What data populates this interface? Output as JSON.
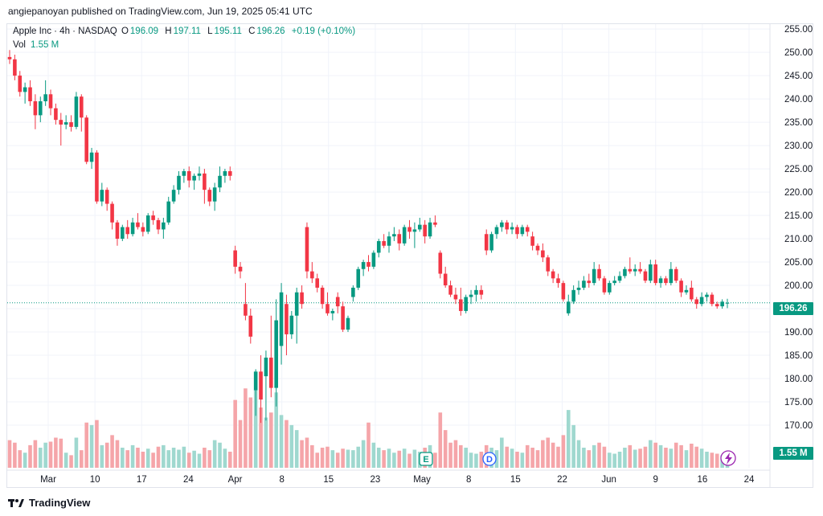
{
  "header": {
    "published": "angiepanoyan published on TradingView.com, Jun 19, 2025 05:41 UTC"
  },
  "legend": {
    "symbol": "Apple Inc · 4h · NASDAQ",
    "o_label": "O",
    "o": "196.09",
    "h_label": "H",
    "h": "197.11",
    "l_label": "L",
    "l": "195.11",
    "c_label": "C",
    "c": "196.26",
    "change": "+0.19 (+0.10%)",
    "vol_label": "Vol",
    "vol": "1.55 M"
  },
  "price_tag": "196.26",
  "volume_tag": "1.55 M",
  "footer": {
    "brand": "TradingView",
    "logo_icon": "tradingview-logo-icon"
  },
  "colors": {
    "up": "#089981",
    "down": "#f23645",
    "vol_up": "#9fd8cf",
    "vol_down": "#f5a5a9",
    "grid": "#f0f3fa"
  },
  "chart_data": {
    "type": "candlestick",
    "ylim": [
      165,
      257
    ],
    "y_ticks": [
      "170.00",
      "175.00",
      "180.00",
      "185.00",
      "190.00",
      "195.00",
      "200.00",
      "205.00",
      "210.00",
      "215.00",
      "220.00",
      "225.00",
      "230.00",
      "235.00",
      "240.00",
      "245.00",
      "250.00",
      "255.00"
    ],
    "x_ticks": [
      "Mar",
      "10",
      "17",
      "24",
      "Apr",
      "8",
      "15",
      "23",
      "May",
      "8",
      "15",
      "22",
      "Jun",
      "9",
      "16",
      "24"
    ],
    "last_price": 196.26,
    "event_markers": [
      {
        "label": "E",
        "icon": "earnings-marker"
      },
      {
        "label": "D",
        "icon": "dividend-marker"
      },
      {
        "label": "",
        "icon": "split-lightning-icon"
      }
    ],
    "candles": [
      {
        "o": 249.0,
        "h": 250.5,
        "l": 247.5,
        "c": 248.5,
        "v": 55
      },
      {
        "o": 248.5,
        "h": 249.5,
        "l": 244.0,
        "c": 245.0,
        "v": 50
      },
      {
        "o": 245.0,
        "h": 246.0,
        "l": 240.5,
        "c": 241.5,
        "v": 35
      },
      {
        "o": 241.5,
        "h": 243.5,
        "l": 239.0,
        "c": 242.5,
        "v": 30
      },
      {
        "o": 242.5,
        "h": 244.0,
        "l": 238.5,
        "c": 239.5,
        "v": 45
      },
      {
        "o": 239.5,
        "h": 241.0,
        "l": 233.5,
        "c": 236.5,
        "v": 55
      },
      {
        "o": 236.5,
        "h": 240.5,
        "l": 235.0,
        "c": 239.5,
        "v": 40
      },
      {
        "o": 239.5,
        "h": 244.0,
        "l": 238.5,
        "c": 241.0,
        "v": 50
      },
      {
        "o": 241.0,
        "h": 242.0,
        "l": 236.5,
        "c": 238.0,
        "v": 52
      },
      {
        "o": 238.0,
        "h": 239.0,
        "l": 234.5,
        "c": 235.5,
        "v": 60
      },
      {
        "o": 235.5,
        "h": 237.0,
        "l": 230.0,
        "c": 234.5,
        "v": 58
      },
      {
        "o": 234.5,
        "h": 236.5,
        "l": 233.5,
        "c": 235.0,
        "v": 30
      },
      {
        "o": 235.0,
        "h": 236.5,
        "l": 233.0,
        "c": 234.0,
        "v": 25
      },
      {
        "o": 234.0,
        "h": 241.5,
        "l": 233.5,
        "c": 240.5,
        "v": 60
      },
      {
        "o": 240.5,
        "h": 241.0,
        "l": 233.0,
        "c": 236.0,
        "v": 35
      },
      {
        "o": 236.0,
        "h": 236.5,
        "l": 226.0,
        "c": 226.5,
        "v": 90
      },
      {
        "o": 226.5,
        "h": 229.5,
        "l": 225.0,
        "c": 228.5,
        "v": 85
      },
      {
        "o": 228.5,
        "h": 229.0,
        "l": 217.5,
        "c": 218.0,
        "v": 95
      },
      {
        "o": 218.0,
        "h": 222.0,
        "l": 217.0,
        "c": 220.5,
        "v": 45
      },
      {
        "o": 220.5,
        "h": 221.0,
        "l": 216.0,
        "c": 217.5,
        "v": 50
      },
      {
        "o": 217.5,
        "h": 218.0,
        "l": 212.0,
        "c": 213.5,
        "v": 65
      },
      {
        "o": 213.5,
        "h": 214.0,
        "l": 208.5,
        "c": 210.0,
        "v": 55
      },
      {
        "o": 210.0,
        "h": 213.0,
        "l": 209.5,
        "c": 212.5,
        "v": 40
      },
      {
        "o": 212.5,
        "h": 214.0,
        "l": 210.0,
        "c": 211.0,
        "v": 35
      },
      {
        "o": 211.0,
        "h": 214.5,
        "l": 210.5,
        "c": 213.5,
        "v": 45
      },
      {
        "o": 213.5,
        "h": 215.5,
        "l": 212.0,
        "c": 212.5,
        "v": 40
      },
      {
        "o": 212.5,
        "h": 213.5,
        "l": 210.5,
        "c": 211.5,
        "v": 32
      },
      {
        "o": 211.5,
        "h": 215.5,
        "l": 211.0,
        "c": 215.0,
        "v": 38
      },
      {
        "o": 215.0,
        "h": 216.0,
        "l": 213.0,
        "c": 214.0,
        "v": 30
      },
      {
        "o": 214.0,
        "h": 214.5,
        "l": 211.0,
        "c": 212.0,
        "v": 42
      },
      {
        "o": 212.0,
        "h": 214.5,
        "l": 210.0,
        "c": 213.5,
        "v": 45
      },
      {
        "o": 213.5,
        "h": 219.0,
        "l": 213.0,
        "c": 218.0,
        "v": 35
      },
      {
        "o": 218.0,
        "h": 221.5,
        "l": 217.5,
        "c": 220.5,
        "v": 40
      },
      {
        "o": 220.5,
        "h": 224.5,
        "l": 219.5,
        "c": 223.5,
        "v": 36
      },
      {
        "o": 223.5,
        "h": 225.0,
        "l": 222.0,
        "c": 224.5,
        "v": 42
      },
      {
        "o": 224.5,
        "h": 225.5,
        "l": 221.0,
        "c": 222.5,
        "v": 30
      },
      {
        "o": 222.5,
        "h": 224.0,
        "l": 220.5,
        "c": 223.5,
        "v": 34
      },
      {
        "o": 223.5,
        "h": 225.5,
        "l": 222.5,
        "c": 224.0,
        "v": 28
      },
      {
        "o": 224.0,
        "h": 225.0,
        "l": 217.5,
        "c": 220.5,
        "v": 40
      },
      {
        "o": 220.5,
        "h": 221.0,
        "l": 217.0,
        "c": 218.0,
        "v": 35
      },
      {
        "o": 218.0,
        "h": 222.0,
        "l": 216.0,
        "c": 221.0,
        "v": 55
      },
      {
        "o": 221.0,
        "h": 225.5,
        "l": 220.0,
        "c": 223.5,
        "v": 50
      },
      {
        "o": 223.5,
        "h": 225.0,
        "l": 222.0,
        "c": 224.5,
        "v": 38
      },
      {
        "o": 224.5,
        "h": 225.5,
        "l": 222.5,
        "c": 223.5,
        "v": 32
      },
      {
        "o": 207.5,
        "h": 208.5,
        "l": 202.5,
        "c": 204.0,
        "v": 135
      },
      {
        "o": 204.0,
        "h": 205.0,
        "l": 201.5,
        "c": 203.0,
        "v": 95
      },
      {
        "o": 196.0,
        "h": 200.5,
        "l": 192.5,
        "c": 193.5,
        "v": 158
      },
      {
        "o": 193.5,
        "h": 195.0,
        "l": 187.5,
        "c": 189.0,
        "v": 140
      },
      {
        "o": 177.5,
        "h": 182.0,
        "l": 172.0,
        "c": 181.5,
        "v": 155
      },
      {
        "o": 181.5,
        "h": 185.0,
        "l": 170.5,
        "c": 175.5,
        "v": 120
      },
      {
        "o": 180.5,
        "h": 186.0,
        "l": 171.0,
        "c": 184.5,
        "v": 100
      },
      {
        "o": 184.5,
        "h": 193.5,
        "l": 176.0,
        "c": 178.0,
        "v": 110
      },
      {
        "o": 178.0,
        "h": 197.0,
        "l": 174.0,
        "c": 192.5,
        "v": 150
      },
      {
        "o": 187.0,
        "h": 200.5,
        "l": 183.0,
        "c": 198.5,
        "v": 105
      },
      {
        "o": 196.0,
        "h": 198.0,
        "l": 185.0,
        "c": 189.5,
        "v": 95
      },
      {
        "o": 189.5,
        "h": 194.5,
        "l": 188.5,
        "c": 193.5,
        "v": 85
      },
      {
        "o": 193.5,
        "h": 199.5,
        "l": 187.5,
        "c": 198.5,
        "v": 75
      },
      {
        "o": 198.5,
        "h": 200.0,
        "l": 195.0,
        "c": 196.0,
        "v": 55
      },
      {
        "o": 212.5,
        "h": 213.5,
        "l": 201.5,
        "c": 203.0,
        "v": 60
      },
      {
        "o": 203.0,
        "h": 205.0,
        "l": 200.5,
        "c": 201.5,
        "v": 45
      },
      {
        "o": 201.5,
        "h": 202.5,
        "l": 198.5,
        "c": 199.5,
        "v": 30
      },
      {
        "o": 199.5,
        "h": 200.0,
        "l": 195.0,
        "c": 196.0,
        "v": 40
      },
      {
        "o": 196.0,
        "h": 198.5,
        "l": 193.5,
        "c": 194.0,
        "v": 42
      },
      {
        "o": 194.0,
        "h": 195.0,
        "l": 192.5,
        "c": 194.5,
        "v": 35
      },
      {
        "o": 197.5,
        "h": 198.5,
        "l": 194.0,
        "c": 195.5,
        "v": 30
      },
      {
        "o": 195.5,
        "h": 196.5,
        "l": 190.0,
        "c": 190.5,
        "v": 38
      },
      {
        "o": 190.5,
        "h": 193.5,
        "l": 190.0,
        "c": 193.0,
        "v": 36
      },
      {
        "o": 197.5,
        "h": 200.0,
        "l": 196.5,
        "c": 199.5,
        "v": 35
      },
      {
        "o": 199.5,
        "h": 204.0,
        "l": 199.0,
        "c": 203.5,
        "v": 42
      },
      {
        "o": 203.5,
        "h": 205.5,
        "l": 202.0,
        "c": 205.0,
        "v": 55
      },
      {
        "o": 205.0,
        "h": 206.5,
        "l": 203.0,
        "c": 204.0,
        "v": 90
      },
      {
        "o": 204.0,
        "h": 207.5,
        "l": 203.5,
        "c": 207.0,
        "v": 50
      },
      {
        "o": 207.0,
        "h": 210.0,
        "l": 206.0,
        "c": 209.5,
        "v": 40
      },
      {
        "o": 209.5,
        "h": 211.0,
        "l": 208.0,
        "c": 208.5,
        "v": 35
      },
      {
        "o": 208.5,
        "h": 211.5,
        "l": 207.0,
        "c": 210.5,
        "v": 38
      },
      {
        "o": 210.5,
        "h": 212.5,
        "l": 209.5,
        "c": 211.0,
        "v": 30
      },
      {
        "o": 211.0,
        "h": 212.0,
        "l": 207.5,
        "c": 209.0,
        "v": 34
      },
      {
        "o": 209.0,
        "h": 213.0,
        "l": 208.5,
        "c": 212.5,
        "v": 38
      },
      {
        "o": 212.5,
        "h": 214.0,
        "l": 210.0,
        "c": 211.5,
        "v": 28
      },
      {
        "o": 211.5,
        "h": 213.5,
        "l": 208.0,
        "c": 212.0,
        "v": 36
      },
      {
        "o": 212.0,
        "h": 214.5,
        "l": 211.5,
        "c": 213.0,
        "v": 32
      },
      {
        "o": 213.0,
        "h": 214.0,
        "l": 209.0,
        "c": 210.5,
        "v": 40
      },
      {
        "o": 210.5,
        "h": 214.5,
        "l": 210.0,
        "c": 213.5,
        "v": 45
      },
      {
        "o": 213.5,
        "h": 215.0,
        "l": 212.5,
        "c": 213.0,
        "v": 30
      },
      {
        "o": 207.0,
        "h": 207.5,
        "l": 201.5,
        "c": 202.5,
        "v": 110
      },
      {
        "o": 202.5,
        "h": 204.0,
        "l": 199.5,
        "c": 200.0,
        "v": 75
      },
      {
        "o": 200.0,
        "h": 201.0,
        "l": 197.5,
        "c": 198.0,
        "v": 50
      },
      {
        "o": 198.0,
        "h": 199.5,
        "l": 196.0,
        "c": 197.0,
        "v": 55
      },
      {
        "o": 197.0,
        "h": 199.5,
        "l": 193.5,
        "c": 194.5,
        "v": 45
      },
      {
        "o": 194.5,
        "h": 198.0,
        "l": 194.0,
        "c": 197.5,
        "v": 40
      },
      {
        "o": 197.5,
        "h": 199.0,
        "l": 196.0,
        "c": 198.0,
        "v": 30
      },
      {
        "o": 198.0,
        "h": 200.0,
        "l": 196.5,
        "c": 199.0,
        "v": 28
      },
      {
        "o": 199.0,
        "h": 200.0,
        "l": 197.0,
        "c": 198.0,
        "v": 32
      },
      {
        "o": 211.0,
        "h": 212.0,
        "l": 206.5,
        "c": 207.5,
        "v": 45
      },
      {
        "o": 207.5,
        "h": 211.5,
        "l": 207.0,
        "c": 211.0,
        "v": 40
      },
      {
        "o": 211.0,
        "h": 213.0,
        "l": 210.0,
        "c": 212.5,
        "v": 35
      },
      {
        "o": 212.5,
        "h": 214.0,
        "l": 211.5,
        "c": 213.5,
        "v": 60
      },
      {
        "o": 213.5,
        "h": 214.0,
        "l": 211.0,
        "c": 212.0,
        "v": 42
      },
      {
        "o": 212.0,
        "h": 213.5,
        "l": 211.0,
        "c": 212.5,
        "v": 38
      },
      {
        "o": 212.5,
        "h": 213.0,
        "l": 210.0,
        "c": 211.0,
        "v": 32
      },
      {
        "o": 211.0,
        "h": 213.0,
        "l": 210.5,
        "c": 212.5,
        "v": 30
      },
      {
        "o": 212.5,
        "h": 213.0,
        "l": 210.5,
        "c": 211.5,
        "v": 45
      },
      {
        "o": 210.5,
        "h": 211.5,
        "l": 207.5,
        "c": 208.5,
        "v": 40
      },
      {
        "o": 208.5,
        "h": 209.0,
        "l": 206.5,
        "c": 207.5,
        "v": 35
      },
      {
        "o": 207.5,
        "h": 209.0,
        "l": 205.0,
        "c": 206.0,
        "v": 55
      },
      {
        "o": 206.0,
        "h": 206.5,
        "l": 202.0,
        "c": 203.0,
        "v": 60
      },
      {
        "o": 203.0,
        "h": 203.5,
        "l": 200.5,
        "c": 201.5,
        "v": 50
      },
      {
        "o": 201.5,
        "h": 202.5,
        "l": 199.5,
        "c": 200.5,
        "v": 42
      },
      {
        "o": 200.5,
        "h": 201.0,
        "l": 196.5,
        "c": 197.0,
        "v": 65
      },
      {
        "o": 194.0,
        "h": 198.0,
        "l": 193.5,
        "c": 196.5,
        "v": 115
      },
      {
        "o": 196.5,
        "h": 200.0,
        "l": 196.0,
        "c": 199.0,
        "v": 85
      },
      {
        "o": 199.0,
        "h": 201.0,
        "l": 198.0,
        "c": 199.5,
        "v": 55
      },
      {
        "o": 199.5,
        "h": 202.0,
        "l": 199.0,
        "c": 201.0,
        "v": 40
      },
      {
        "o": 201.0,
        "h": 202.5,
        "l": 199.5,
        "c": 200.5,
        "v": 35
      },
      {
        "o": 200.5,
        "h": 205.0,
        "l": 200.0,
        "c": 203.5,
        "v": 45
      },
      {
        "o": 203.5,
        "h": 204.5,
        "l": 201.0,
        "c": 201.5,
        "v": 50
      },
      {
        "o": 201.5,
        "h": 202.0,
        "l": 198.0,
        "c": 198.5,
        "v": 42
      },
      {
        "o": 198.5,
        "h": 201.0,
        "l": 198.0,
        "c": 200.5,
        "v": 30
      },
      {
        "o": 200.5,
        "h": 202.0,
        "l": 200.0,
        "c": 201.0,
        "v": 28
      },
      {
        "o": 201.0,
        "h": 203.0,
        "l": 200.5,
        "c": 202.0,
        "v": 32
      },
      {
        "o": 202.0,
        "h": 204.0,
        "l": 201.5,
        "c": 203.5,
        "v": 40
      },
      {
        "o": 203.5,
        "h": 206.0,
        "l": 202.5,
        "c": 203.0,
        "v": 45
      },
      {
        "o": 203.0,
        "h": 204.5,
        "l": 202.0,
        "c": 203.5,
        "v": 36
      },
      {
        "o": 203.5,
        "h": 205.0,
        "l": 202.5,
        "c": 203.0,
        "v": 38
      },
      {
        "o": 203.0,
        "h": 203.5,
        "l": 200.5,
        "c": 201.0,
        "v": 42
      },
      {
        "o": 201.0,
        "h": 205.5,
        "l": 200.5,
        "c": 204.5,
        "v": 55
      },
      {
        "o": 204.5,
        "h": 205.5,
        "l": 200.0,
        "c": 200.5,
        "v": 50
      },
      {
        "o": 200.5,
        "h": 202.0,
        "l": 199.5,
        "c": 201.5,
        "v": 45
      },
      {
        "o": 201.5,
        "h": 202.0,
        "l": 200.0,
        "c": 200.5,
        "v": 40
      },
      {
        "o": 200.5,
        "h": 205.0,
        "l": 200.0,
        "c": 203.5,
        "v": 38
      },
      {
        "o": 203.5,
        "h": 204.0,
        "l": 200.5,
        "c": 201.0,
        "v": 50
      },
      {
        "o": 201.0,
        "h": 201.5,
        "l": 197.5,
        "c": 198.5,
        "v": 45
      },
      {
        "o": 198.5,
        "h": 200.0,
        "l": 198.0,
        "c": 199.0,
        "v": 35
      },
      {
        "o": 199.5,
        "h": 201.0,
        "l": 196.5,
        "c": 197.0,
        "v": 48
      },
      {
        "o": 197.0,
        "h": 197.5,
        "l": 195.0,
        "c": 196.0,
        "v": 42
      },
      {
        "o": 196.0,
        "h": 198.5,
        "l": 195.5,
        "c": 197.5,
        "v": 38
      },
      {
        "o": 197.5,
        "h": 198.5,
        "l": 196.5,
        "c": 198.0,
        "v": 32
      },
      {
        "o": 198.0,
        "h": 198.5,
        "l": 195.5,
        "c": 196.0,
        "v": 30
      },
      {
        "o": 196.0,
        "h": 196.5,
        "l": 195.0,
        "c": 195.5,
        "v": 28
      },
      {
        "o": 195.5,
        "h": 197.0,
        "l": 195.0,
        "c": 196.5,
        "v": 25
      },
      {
        "o": 196.09,
        "h": 197.11,
        "l": 195.11,
        "c": 196.26,
        "v": 20
      }
    ]
  }
}
